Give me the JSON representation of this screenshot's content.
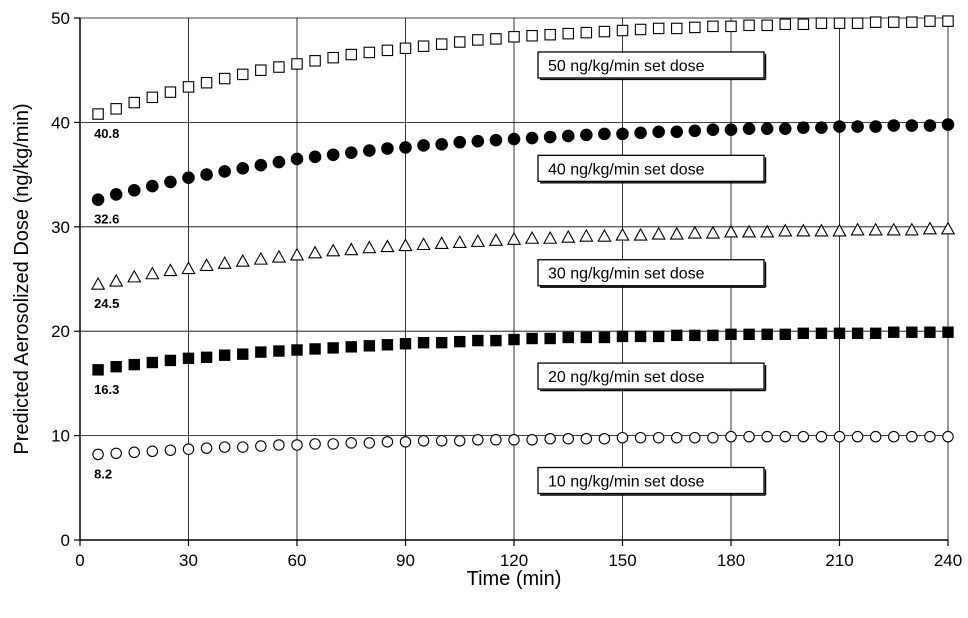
{
  "chart_data": {
    "type": "scatter",
    "xlabel": "Time (min)",
    "ylabel": "Predicted Aerosolized Dose (ng/kg/min)",
    "xlim": [
      0,
      240
    ],
    "ylim": [
      0,
      50
    ],
    "xticks": [
      0,
      30,
      60,
      90,
      120,
      150,
      180,
      210,
      240
    ],
    "yticks": [
      0,
      10,
      20,
      30,
      40,
      50
    ],
    "grid": true,
    "x": [
      5,
      10,
      15,
      20,
      25,
      30,
      35,
      40,
      45,
      50,
      55,
      60,
      65,
      70,
      75,
      80,
      85,
      90,
      95,
      100,
      105,
      110,
      115,
      120,
      125,
      130,
      135,
      140,
      145,
      150,
      155,
      160,
      165,
      170,
      175,
      180,
      185,
      190,
      195,
      200,
      205,
      210,
      215,
      220,
      225,
      230,
      235,
      240
    ],
    "series": [
      {
        "name": "50 ng/kg/min set dose",
        "marker": "open-square",
        "start_label": "40.8",
        "values": [
          40.8,
          41.3,
          41.9,
          42.4,
          42.9,
          43.4,
          43.8,
          44.2,
          44.6,
          45.0,
          45.3,
          45.6,
          45.9,
          46.2,
          46.5,
          46.7,
          46.9,
          47.1,
          47.3,
          47.5,
          47.7,
          47.9,
          48.0,
          48.2,
          48.3,
          48.4,
          48.5,
          48.6,
          48.7,
          48.8,
          48.9,
          49.0,
          49.0,
          49.1,
          49.2,
          49.2,
          49.3,
          49.3,
          49.4,
          49.4,
          49.5,
          49.5,
          49.5,
          49.6,
          49.6,
          49.6,
          49.7,
          49.7
        ]
      },
      {
        "name": "40 ng/kg/min set dose",
        "marker": "filled-circle",
        "start_label": "32.6",
        "values": [
          32.6,
          33.1,
          33.5,
          33.9,
          34.3,
          34.7,
          35.0,
          35.3,
          35.6,
          35.9,
          36.2,
          36.5,
          36.7,
          36.9,
          37.1,
          37.3,
          37.5,
          37.6,
          37.8,
          37.9,
          38.1,
          38.2,
          38.3,
          38.4,
          38.5,
          38.6,
          38.7,
          38.8,
          38.9,
          38.9,
          39.0,
          39.1,
          39.1,
          39.2,
          39.3,
          39.3,
          39.4,
          39.4,
          39.4,
          39.5,
          39.5,
          39.6,
          39.6,
          39.6,
          39.7,
          39.7,
          39.7,
          39.8
        ]
      },
      {
        "name": "30 ng/kg/min set dose",
        "marker": "open-triangle",
        "start_label": "24.5",
        "values": [
          24.5,
          24.8,
          25.2,
          25.5,
          25.8,
          26.0,
          26.3,
          26.5,
          26.7,
          26.9,
          27.1,
          27.3,
          27.5,
          27.7,
          27.8,
          28.0,
          28.1,
          28.2,
          28.3,
          28.4,
          28.5,
          28.6,
          28.7,
          28.8,
          28.9,
          28.9,
          29.0,
          29.1,
          29.1,
          29.2,
          29.2,
          29.3,
          29.3,
          29.4,
          29.4,
          29.5,
          29.5,
          29.5,
          29.6,
          29.6,
          29.6,
          29.6,
          29.7,
          29.7,
          29.7,
          29.7,
          29.8,
          29.8
        ]
      },
      {
        "name": "20 ng/kg/min set dose",
        "marker": "filled-square",
        "start_label": "16.3",
        "values": [
          16.3,
          16.6,
          16.8,
          17.0,
          17.2,
          17.4,
          17.5,
          17.7,
          17.8,
          18.0,
          18.1,
          18.2,
          18.3,
          18.4,
          18.5,
          18.6,
          18.7,
          18.8,
          18.9,
          18.9,
          19.0,
          19.1,
          19.1,
          19.2,
          19.3,
          19.3,
          19.4,
          19.4,
          19.4,
          19.5,
          19.5,
          19.5,
          19.6,
          19.6,
          19.6,
          19.7,
          19.7,
          19.7,
          19.7,
          19.8,
          19.8,
          19.8,
          19.8,
          19.8,
          19.9,
          19.9,
          19.9,
          19.9
        ]
      },
      {
        "name": "10 ng/kg/min set dose",
        "marker": "open-circle",
        "start_label": "8.2",
        "values": [
          8.2,
          8.3,
          8.4,
          8.5,
          8.6,
          8.7,
          8.8,
          8.9,
          8.9,
          9.0,
          9.1,
          9.1,
          9.2,
          9.2,
          9.3,
          9.3,
          9.4,
          9.4,
          9.5,
          9.5,
          9.5,
          9.6,
          9.6,
          9.6,
          9.6,
          9.7,
          9.7,
          9.7,
          9.7,
          9.8,
          9.8,
          9.8,
          9.8,
          9.8,
          9.8,
          9.9,
          9.9,
          9.9,
          9.9,
          9.9,
          9.9,
          9.9,
          9.9,
          9.9,
          9.9,
          9.9,
          9.9,
          9.9
        ]
      }
    ]
  }
}
